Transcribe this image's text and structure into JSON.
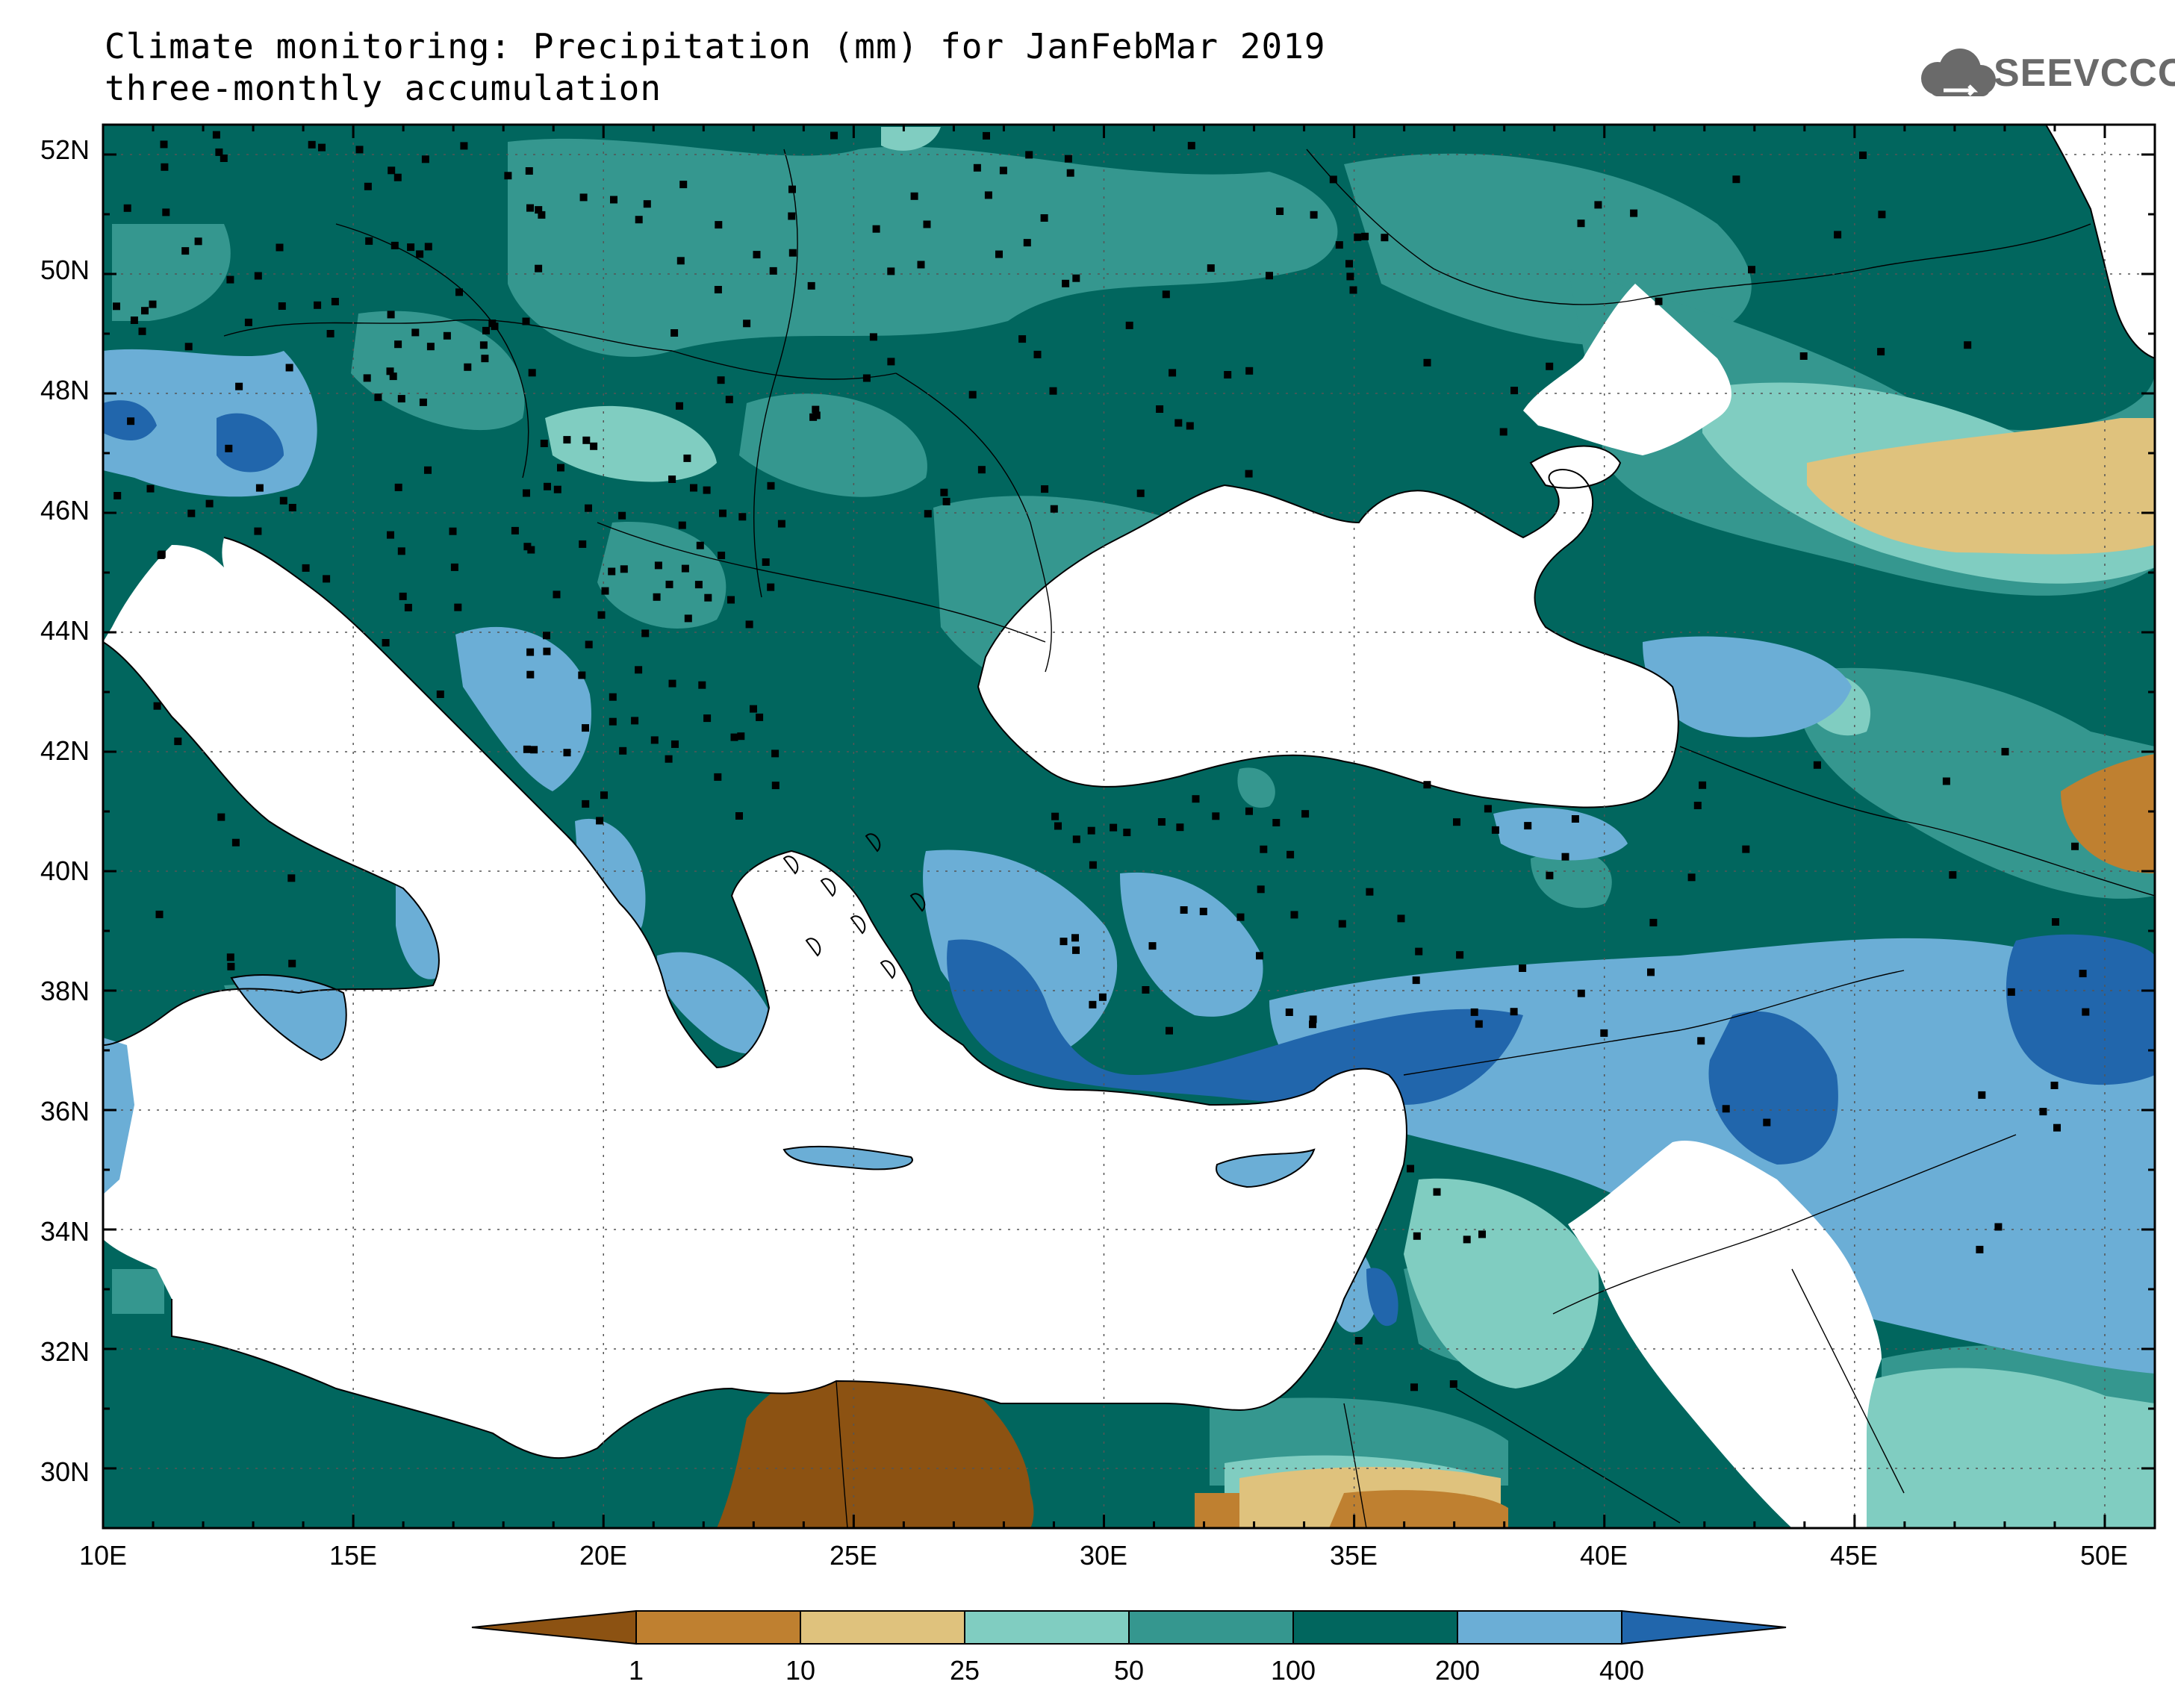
{
  "title": {
    "line1": "Climate monitoring: Precipitation (mm) for JanFebMar 2019",
    "line2": "three-monthly accumulation"
  },
  "logo": {
    "text": "SEEVCCC",
    "icon": "cloud-icon"
  },
  "axes": {
    "lat_labels": [
      "52N",
      "50N",
      "48N",
      "46N",
      "44N",
      "42N",
      "40N",
      "38N",
      "36N",
      "34N",
      "32N",
      "30N"
    ],
    "lon_labels": [
      "10E",
      "15E",
      "20E",
      "25E",
      "30E",
      "35E",
      "40E",
      "45E",
      "50E"
    ],
    "lon_range": [
      10,
      51
    ],
    "lat_range": [
      29,
      52.5
    ],
    "grid": "dotted"
  },
  "legend": {
    "type": "colorbar",
    "placement": "bottom",
    "thresholds": [
      "1",
      "10",
      "25",
      "50",
      "100",
      "200",
      "400"
    ],
    "bins": [
      {
        "range": "<1",
        "color": "#8c5212"
      },
      {
        "range": "1-10",
        "color": "#bf8030"
      },
      {
        "range": "10-25",
        "color": "#dfc27d"
      },
      {
        "range": "25-50",
        "color": "#80cdc1"
      },
      {
        "range": "50-100",
        "color": "#35978f"
      },
      {
        "range": "100-200",
        "color": "#01665e"
      },
      {
        "range": "200-400",
        "color": "#6baed6"
      },
      {
        "range": ">400",
        "color": "#2166ac"
      }
    ]
  },
  "colors": {
    "sea": "#ffffff",
    "coast": "#000000",
    "station": "#000000"
  }
}
